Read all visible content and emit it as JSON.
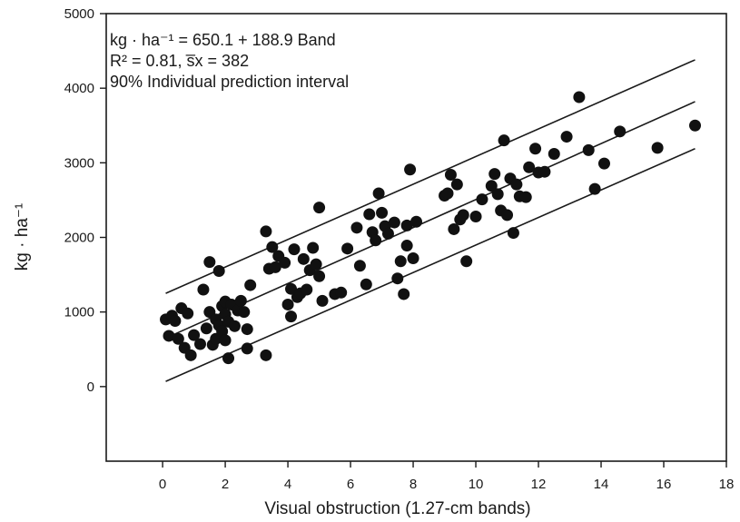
{
  "chart_data": {
    "type": "scatter",
    "xlabel": "Visual obstruction (1.27-cm bands)",
    "ylabel": "kg · ha⁻¹",
    "xlim": [
      -1.8,
      18
    ],
    "ylim": [
      -1000,
      5000
    ],
    "xticks": [
      "0",
      "2",
      "4",
      "6",
      "8",
      "10",
      "12",
      "14",
      "16",
      "18"
    ],
    "yticks": [
      "0",
      "1000",
      "2000",
      "3000",
      "4000",
      "5000"
    ],
    "grid": false,
    "annotations": [
      "kg · ha⁻¹ = 650.1 + 188.9 Band",
      "R² = 0.81, s̅x = 382",
      "90% Individual prediction interval"
    ],
    "lines": [
      {
        "x": [
          0.1,
          17
        ],
        "y": [
          1250,
          4380
        ]
      },
      {
        "x": [
          0.1,
          17
        ],
        "y": [
          650,
          3820
        ]
      },
      {
        "x": [
          0.1,
          17
        ],
        "y": [
          70,
          3190
        ]
      }
    ],
    "points": [
      [
        0.1,
        900
      ],
      [
        0.2,
        680
      ],
      [
        0.3,
        950
      ],
      [
        0.4,
        880
      ],
      [
        0.5,
        640
      ],
      [
        0.6,
        1050
      ],
      [
        0.7,
        520
      ],
      [
        0.8,
        980
      ],
      [
        0.9,
        420
      ],
      [
        1.0,
        690
      ],
      [
        1.2,
        570
      ],
      [
        1.3,
        1300
      ],
      [
        1.4,
        780
      ],
      [
        1.5,
        1670
      ],
      [
        1.5,
        1000
      ],
      [
        1.6,
        560
      ],
      [
        1.7,
        640
      ],
      [
        1.7,
        900
      ],
      [
        1.8,
        1550
      ],
      [
        1.8,
        820
      ],
      [
        1.9,
        740
      ],
      [
        1.9,
        1080
      ],
      [
        2.0,
        970
      ],
      [
        2.0,
        620
      ],
      [
        2.0,
        1140
      ],
      [
        2.1,
        380
      ],
      [
        2.1,
        870
      ],
      [
        2.2,
        1100
      ],
      [
        2.3,
        810
      ],
      [
        2.4,
        1020
      ],
      [
        2.5,
        1150
      ],
      [
        2.6,
        1000
      ],
      [
        2.7,
        510
      ],
      [
        2.7,
        770
      ],
      [
        2.8,
        1360
      ],
      [
        3.3,
        420
      ],
      [
        3.3,
        2080
      ],
      [
        3.4,
        1580
      ],
      [
        3.5,
        1870
      ],
      [
        3.6,
        1600
      ],
      [
        3.7,
        1750
      ],
      [
        3.9,
        1660
      ],
      [
        4.0,
        1100
      ],
      [
        4.1,
        940
      ],
      [
        4.1,
        1310
      ],
      [
        4.2,
        1840
      ],
      [
        4.3,
        1200
      ],
      [
        4.4,
        1250
      ],
      [
        4.5,
        1710
      ],
      [
        4.6,
        1300
      ],
      [
        4.7,
        1560
      ],
      [
        4.8,
        1860
      ],
      [
        4.9,
        1640
      ],
      [
        5.0,
        2400
      ],
      [
        5.0,
        1480
      ],
      [
        5.1,
        1150
      ],
      [
        5.5,
        1240
      ],
      [
        5.7,
        1260
      ],
      [
        5.9,
        1850
      ],
      [
        6.2,
        2130
      ],
      [
        6.3,
        1620
      ],
      [
        6.5,
        1370
      ],
      [
        6.6,
        2310
      ],
      [
        6.7,
        2070
      ],
      [
        6.8,
        1960
      ],
      [
        6.9,
        2590
      ],
      [
        7.0,
        2330
      ],
      [
        7.1,
        2150
      ],
      [
        7.2,
        2050
      ],
      [
        7.4,
        2200
      ],
      [
        7.5,
        1450
      ],
      [
        7.6,
        1680
      ],
      [
        7.7,
        1240
      ],
      [
        7.8,
        1890
      ],
      [
        7.8,
        2160
      ],
      [
        7.9,
        2910
      ],
      [
        8.0,
        1720
      ],
      [
        8.1,
        2210
      ],
      [
        9.0,
        2560
      ],
      [
        9.1,
        2590
      ],
      [
        9.2,
        2840
      ],
      [
        9.3,
        2110
      ],
      [
        9.4,
        2710
      ],
      [
        9.5,
        2240
      ],
      [
        9.6,
        2300
      ],
      [
        9.7,
        1680
      ],
      [
        10.0,
        2280
      ],
      [
        10.2,
        2510
      ],
      [
        10.5,
        2690
      ],
      [
        10.6,
        2850
      ],
      [
        10.7,
        2580
      ],
      [
        10.8,
        2360
      ],
      [
        10.9,
        3300
      ],
      [
        11.0,
        2300
      ],
      [
        11.1,
        2790
      ],
      [
        11.2,
        2060
      ],
      [
        11.3,
        2710
      ],
      [
        11.4,
        2550
      ],
      [
        11.6,
        2540
      ],
      [
        11.7,
        2940
      ],
      [
        11.9,
        3190
      ],
      [
        12.0,
        2870
      ],
      [
        12.2,
        2880
      ],
      [
        12.5,
        3120
      ],
      [
        12.9,
        3350
      ],
      [
        13.3,
        3880
      ],
      [
        13.6,
        3170
      ],
      [
        13.8,
        2650
      ],
      [
        14.1,
        2990
      ],
      [
        14.6,
        3420
      ],
      [
        15.8,
        3200
      ],
      [
        17.0,
        3500
      ]
    ]
  }
}
